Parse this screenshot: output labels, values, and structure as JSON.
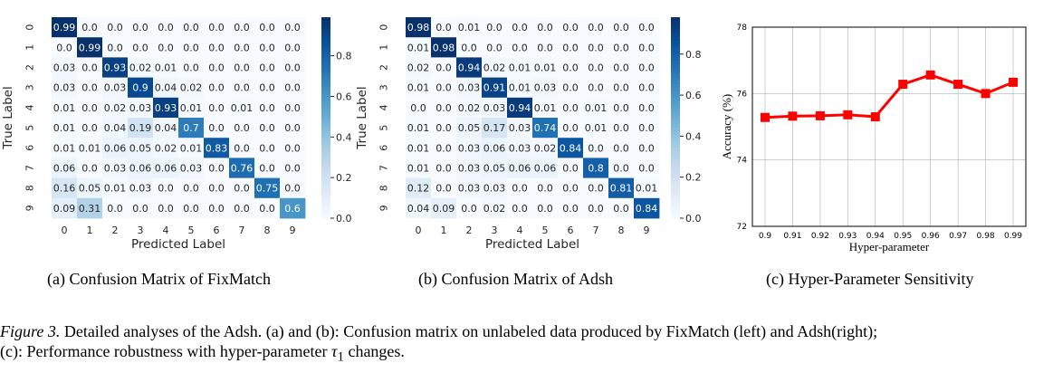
{
  "colors": {
    "cmap_low": "#f7fbff",
    "cmap_high": "#08306b",
    "line": "#ff0000",
    "grid": "#b0b0b0"
  },
  "subcaptions": [
    "(a)  Confusion Matrix of FixMatch",
    "(b)  Confusion Matrix of Adsh",
    "(c)  Hyper-Parameter Sensitivity"
  ],
  "figure_caption": {
    "label": "Figure 3.",
    "text": " Detailed analyses of the Adsh. (a) and (b): Confusion matrix on unlabeled data produced by FixMatch (left) and Adsh(right);",
    "line2_prefix": "(c): Performance robustness with hyper-parameter ",
    "symbol": "τ",
    "subscript": "1",
    "line2_suffix": " changes."
  },
  "chart_data": [
    {
      "type": "heatmap",
      "xlabel": "Predicted Label",
      "ylabel": "True Label",
      "x_ticks": [
        "0",
        "1",
        "2",
        "3",
        "4",
        "5",
        "6",
        "7",
        "8",
        "9"
      ],
      "y_ticks": [
        "0",
        "1",
        "2",
        "3",
        "4",
        "5",
        "6",
        "7",
        "8",
        "9"
      ],
      "colorbar_ticks": [
        "0.0",
        "0.2",
        "0.4",
        "0.6",
        "0.8"
      ],
      "colorbar_range": [
        0,
        0.99
      ],
      "cells": [
        [
          "0.99",
          "0.0",
          "0.0",
          "0.0",
          "0.0",
          "0.0",
          "0.0",
          "0.0",
          "0.0",
          "0.0"
        ],
        [
          "0.0",
          "0.99",
          "0.0",
          "0.0",
          "0.0",
          "0.0",
          "0.0",
          "0.0",
          "0.0",
          "0.0"
        ],
        [
          "0.03",
          "0.0",
          "0.93",
          "0.02",
          "0.01",
          "0.0",
          "0.0",
          "0.0",
          "0.0",
          "0.0"
        ],
        [
          "0.03",
          "0.0",
          "0.03",
          "0.9",
          "0.04",
          "0.02",
          "0.0",
          "0.0",
          "0.0",
          "0.0"
        ],
        [
          "0.01",
          "0.0",
          "0.02",
          "0.03",
          "0.93",
          "0.01",
          "0.0",
          "0.01",
          "0.0",
          "0.0"
        ],
        [
          "0.01",
          "0.0",
          "0.04",
          "0.19",
          "0.04",
          "0.7",
          "0.0",
          "0.0",
          "0.0",
          "0.0"
        ],
        [
          "0.01",
          "0.01",
          "0.06",
          "0.05",
          "0.02",
          "0.01",
          "0.83",
          "0.0",
          "0.0",
          "0.0"
        ],
        [
          "0.06",
          "0.0",
          "0.03",
          "0.06",
          "0.06",
          "0.03",
          "0.0",
          "0.76",
          "0.0",
          "0.0"
        ],
        [
          "0.16",
          "0.05",
          "0.01",
          "0.03",
          "0.0",
          "0.0",
          "0.0",
          "0.0",
          "0.75",
          "0.0"
        ],
        [
          "0.09",
          "0.31",
          "0.0",
          "0.0",
          "0.0",
          "0.0",
          "0.0",
          "0.0",
          "0.0",
          "0.6"
        ]
      ]
    },
    {
      "type": "heatmap",
      "xlabel": "Predicted Label",
      "ylabel": "True Label",
      "x_ticks": [
        "0",
        "1",
        "2",
        "3",
        "4",
        "5",
        "6",
        "7",
        "8",
        "9"
      ],
      "y_ticks": [
        "0",
        "1",
        "2",
        "3",
        "4",
        "5",
        "6",
        "7",
        "8",
        "9"
      ],
      "colorbar_ticks": [
        "0.0",
        "0.2",
        "0.4",
        "0.6",
        "0.8"
      ],
      "colorbar_range": [
        0,
        0.98
      ],
      "cells": [
        [
          "0.98",
          "0.0",
          "0.01",
          "0.0",
          "0.0",
          "0.0",
          "0.0",
          "0.0",
          "0.0",
          "0.0"
        ],
        [
          "0.01",
          "0.98",
          "0.0",
          "0.0",
          "0.0",
          "0.0",
          "0.0",
          "0.0",
          "0.0",
          "0.0"
        ],
        [
          "0.02",
          "0.0",
          "0.94",
          "0.02",
          "0.01",
          "0.01",
          "0.0",
          "0.0",
          "0.0",
          "0.0"
        ],
        [
          "0.01",
          "0.0",
          "0.03",
          "0.91",
          "0.01",
          "0.03",
          "0.0",
          "0.0",
          "0.0",
          "0.0"
        ],
        [
          "0.0",
          "0.0",
          "0.02",
          "0.03",
          "0.94",
          "0.01",
          "0.0",
          "0.01",
          "0.0",
          "0.0"
        ],
        [
          "0.01",
          "0.0",
          "0.05",
          "0.17",
          "0.03",
          "0.74",
          "0.0",
          "0.01",
          "0.0",
          "0.0"
        ],
        [
          "0.01",
          "0.0",
          "0.03",
          "0.06",
          "0.03",
          "0.02",
          "0.84",
          "0.0",
          "0.0",
          "0.0"
        ],
        [
          "0.01",
          "0.0",
          "0.03",
          "0.05",
          "0.06",
          "0.06",
          "0.0",
          "0.8",
          "0.0",
          "0.0"
        ],
        [
          "0.12",
          "0.0",
          "0.03",
          "0.03",
          "0.0",
          "0.0",
          "0.0",
          "0.0",
          "0.81",
          "0.01"
        ],
        [
          "0.04",
          "0.09",
          "0.0",
          "0.02",
          "0.0",
          "0.0",
          "0.0",
          "0.0",
          "0.0",
          "0.84"
        ]
      ]
    },
    {
      "type": "line",
      "xlabel": "Hyper-parameter",
      "ylabel": "Accuracy (%)",
      "x": [
        "0.9",
        "0.91",
        "0.92",
        "0.93",
        "0.94",
        "0.95",
        "0.96",
        "0.97",
        "0.98",
        "0.99"
      ],
      "values": [
        75.28,
        75.32,
        75.33,
        75.36,
        75.3,
        76.28,
        76.56,
        76.28,
        76.0,
        76.34
      ],
      "ylim": [
        72,
        78
      ],
      "y_ticks": [
        "72",
        "74",
        "76",
        "78"
      ],
      "grid": true
    }
  ]
}
